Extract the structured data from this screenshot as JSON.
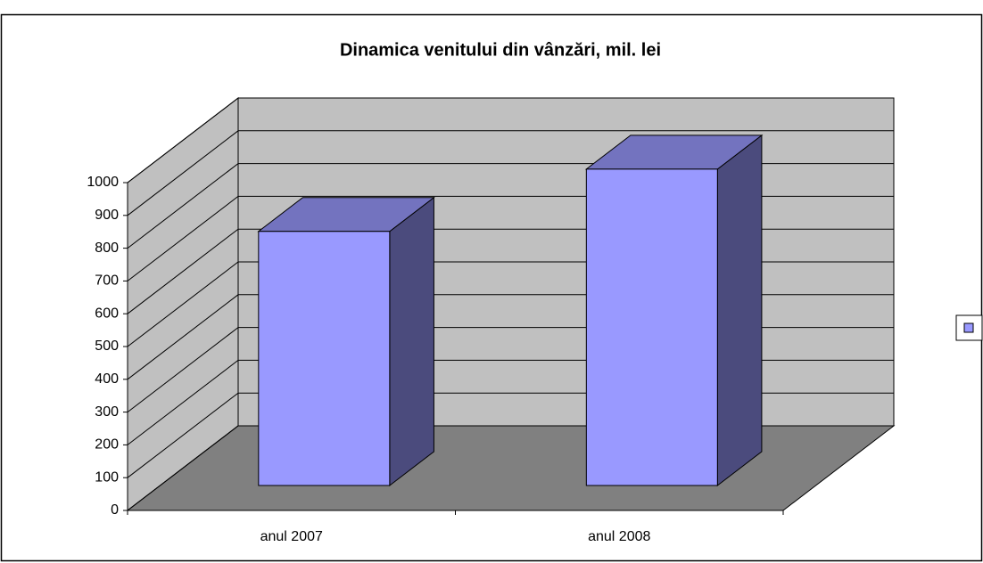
{
  "chart_data": {
    "type": "bar",
    "title": "Dinamica venitului din vânzări, mil. lei",
    "categories": [
      "anul 2007",
      "anul 2008"
    ],
    "values": [
      775,
      965
    ],
    "color": "#9999ff",
    "ylim": [
      0,
      1000
    ],
    "yticks": [
      0,
      100,
      200,
      300,
      400,
      500,
      600,
      700,
      800,
      900,
      1000
    ],
    "grid": true,
    "legend": "right"
  }
}
